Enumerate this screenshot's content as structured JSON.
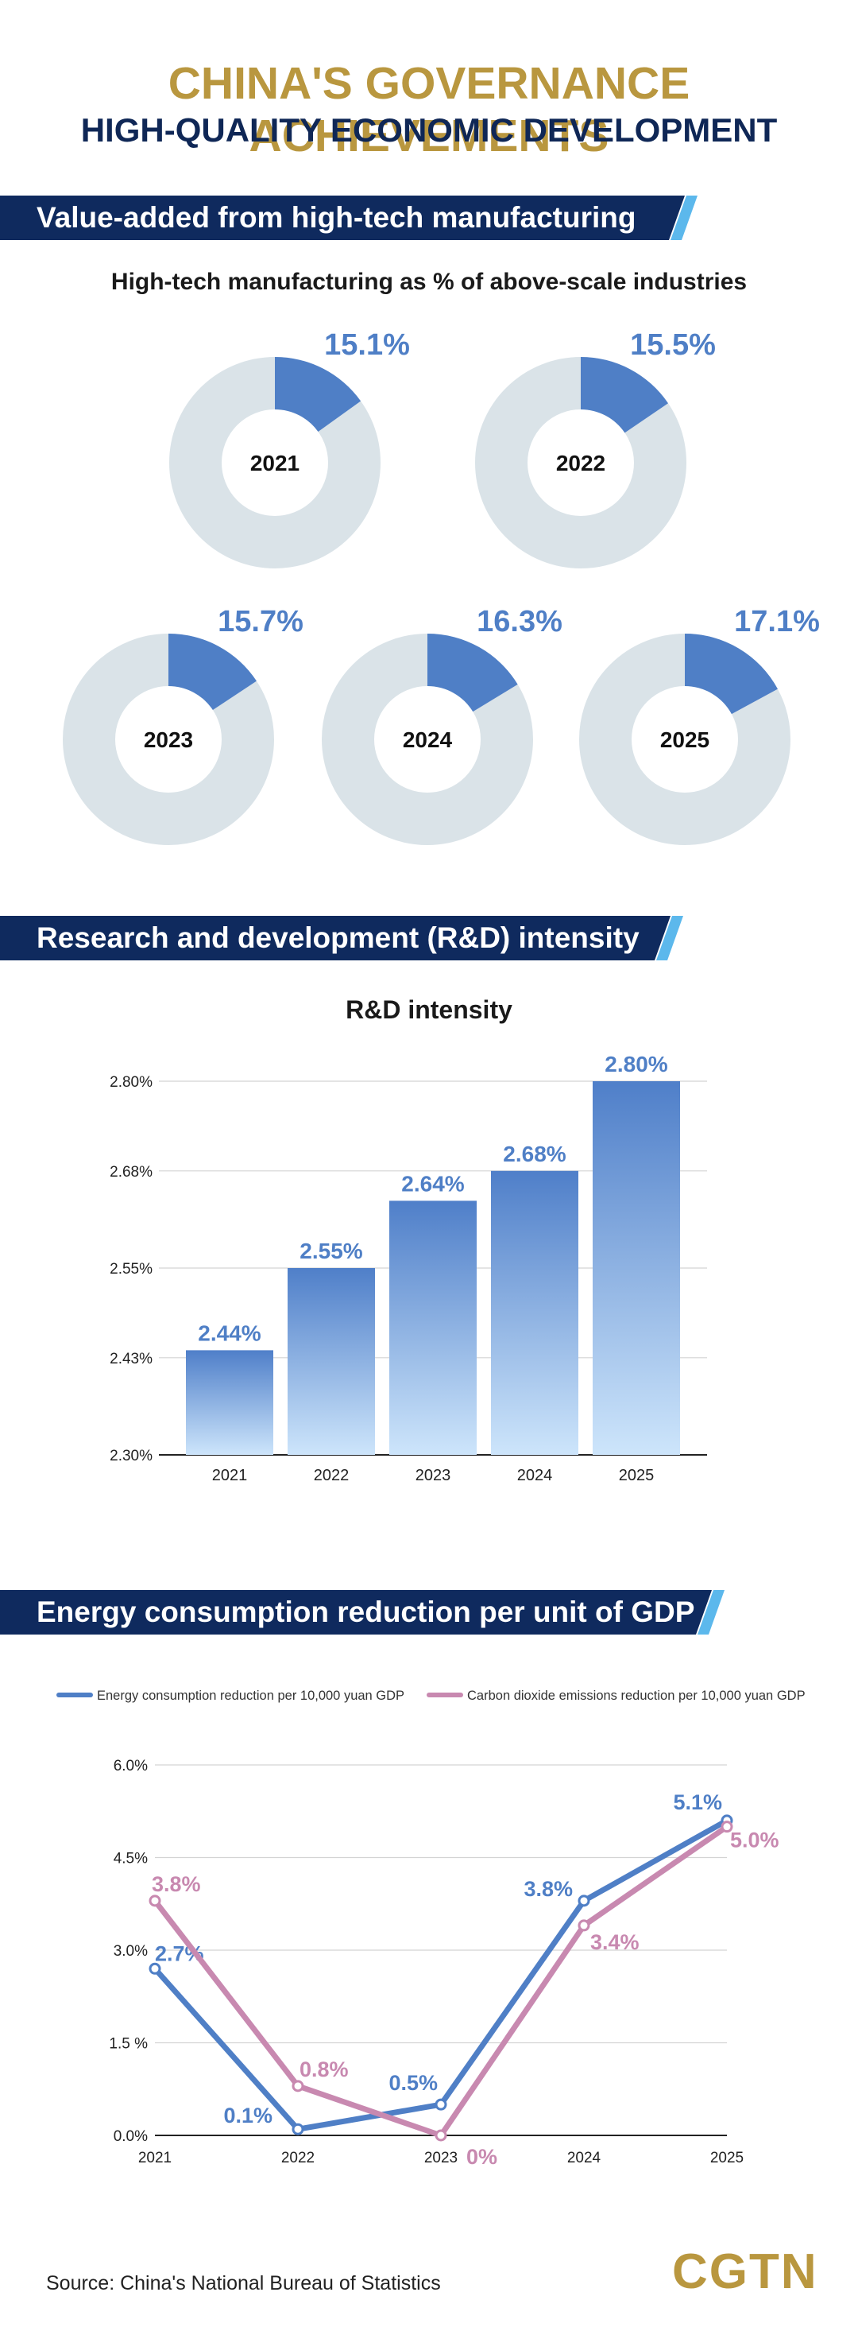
{
  "header": {
    "title": "CHINA'S GOVERNANCE ACHIEVEMENTS",
    "subtitle": "HIGH-QUALITY ECONOMIC DEVELOPMENT"
  },
  "sections": {
    "s1": "Value-added from high-tech manufacturing",
    "s2": "Research and development (R&D) intensity",
    "s3": "Energy consumption reduction per unit of GDP"
  },
  "colors": {
    "navy": "#0f2a5e",
    "gold": "#b9973f",
    "blue": "#4f7fc6",
    "pink": "#c889b0",
    "ring": "#dae3e8"
  },
  "chart_data": [
    {
      "type": "pie",
      "title": "High-tech manufacturing as % of above-scale industries",
      "items": [
        {
          "year": "2021",
          "value": 15.1,
          "label": "15.1%"
        },
        {
          "year": "2022",
          "value": 15.5,
          "label": "15.5%"
        },
        {
          "year": "2023",
          "value": 15.7,
          "label": "15.7%"
        },
        {
          "year": "2024",
          "value": 16.3,
          "label": "16.3%"
        },
        {
          "year": "2025",
          "value": 17.1,
          "label": "17.1%"
        }
      ]
    },
    {
      "type": "bar",
      "title": "R&D intensity",
      "categories": [
        "2021",
        "2022",
        "2023",
        "2024",
        "2025"
      ],
      "values": [
        2.44,
        2.55,
        2.64,
        2.68,
        2.8
      ],
      "value_labels": [
        "2.44%",
        "2.55%",
        "2.64%",
        "2.68%",
        "2.80%"
      ],
      "yticks": [
        2.3,
        2.43,
        2.55,
        2.68,
        2.8
      ],
      "ytick_labels": [
        "2.30%",
        "2.43%",
        "2.55%",
        "2.68%",
        "2.80%"
      ],
      "ylim": [
        2.3,
        2.8
      ]
    },
    {
      "type": "line",
      "title": "Energy consumption reduction per unit of GDP",
      "x": [
        "2021",
        "2022",
        "2023",
        "2024",
        "2025"
      ],
      "yticks": [
        0,
        1.5,
        3.0,
        4.5,
        6.0
      ],
      "ytick_labels": [
        "0.0%",
        "1.5 %",
        "3.0%",
        "4.5%",
        "6.0%"
      ],
      "ylim": [
        0,
        6
      ],
      "series": [
        {
          "name": "Energy consumption reduction per 10,000 yuan GDP",
          "color": "#4f7fc6",
          "values": [
            2.7,
            0.1,
            0.5,
            3.8,
            5.1
          ],
          "labels": [
            "2.7%",
            "0.1%",
            "0.5%",
            "3.8%",
            "5.1%"
          ]
        },
        {
          "name": "Carbon dioxide emissions reduction per 10,000 yuan GDP",
          "color": "#c889b0",
          "values": [
            3.8,
            0.8,
            0,
            3.4,
            5.0
          ],
          "labels": [
            "3.8%",
            "0.8%",
            "0%",
            "3.4%",
            "5.0%"
          ]
        }
      ]
    }
  ],
  "footer": {
    "source": "Source: China's National Bureau of Statistics",
    "logo": "CGTN"
  }
}
